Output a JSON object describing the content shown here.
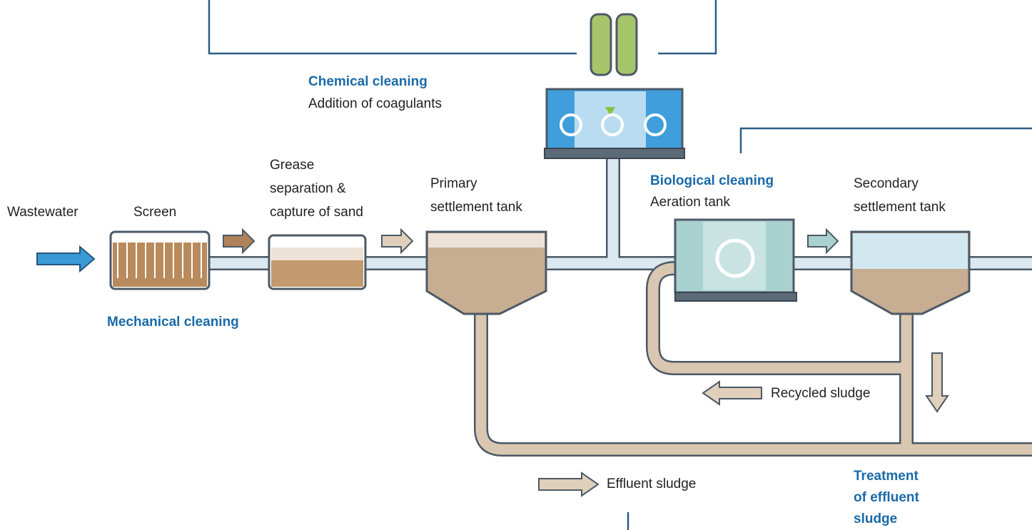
{
  "labels": {
    "wastewater": [
      "Wastewater"
    ],
    "screen": [
      "Screen"
    ],
    "grease": [
      "Grease",
      "separation &",
      "capture of sand"
    ],
    "primary": [
      "Primary",
      "settlement tank"
    ],
    "chemical_title": [
      "Chemical cleaning"
    ],
    "chemical_sub": [
      "Addition of coagulants"
    ],
    "biological_title": [
      "Biological cleaning"
    ],
    "biological_sub": [
      "Aeration tank"
    ],
    "secondary": [
      "Secondary",
      "settlement tank"
    ],
    "mechanical": [
      "Mechanical cleaning"
    ],
    "recycled": [
      "Recycled sludge"
    ],
    "effluent": [
      "Effluent sludge"
    ],
    "treatment": [
      "Treatment",
      "of effluent",
      "sludge"
    ]
  }
}
